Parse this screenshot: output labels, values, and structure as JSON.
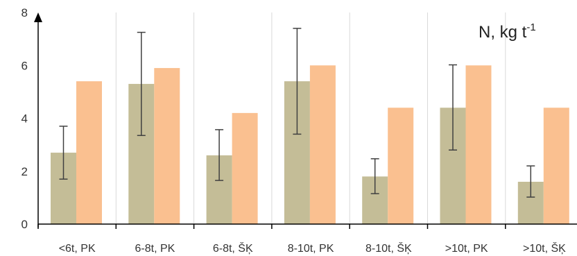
{
  "chart_data": {
    "type": "bar",
    "categories": [
      "<6t, PK",
      "6-8t, PK",
      "6-8t, ŠĶ",
      "8-10t, PK",
      "8-10t, ŠĶ",
      ">10t, PK",
      ">10t, ŠĶ"
    ],
    "series": [
      {
        "values": [
          2.7,
          5.3,
          2.6,
          5.4,
          1.8,
          4.4,
          1.6
        ],
        "error_low": [
          1.7,
          3.35,
          1.65,
          3.4,
          1.15,
          2.8,
          1.02
        ],
        "error_high": [
          3.7,
          7.25,
          3.57,
          7.4,
          2.47,
          6.02,
          2.2
        ],
        "color": "#c4bd97"
      },
      {
        "values": [
          5.4,
          5.9,
          4.2,
          6.0,
          4.4,
          6.0,
          4.4
        ],
        "color": "#fac090"
      }
    ],
    "ylim": [
      0,
      8
    ],
    "yticks": [
      "0",
      "2",
      "4",
      "6",
      "8"
    ],
    "unit_label": {
      "main": "N, kg t",
      "sup": "-1"
    },
    "grid": "vertical",
    "gridline_color": "#d9d9d9",
    "error_color": "#404040",
    "axis_color": "#000000"
  }
}
